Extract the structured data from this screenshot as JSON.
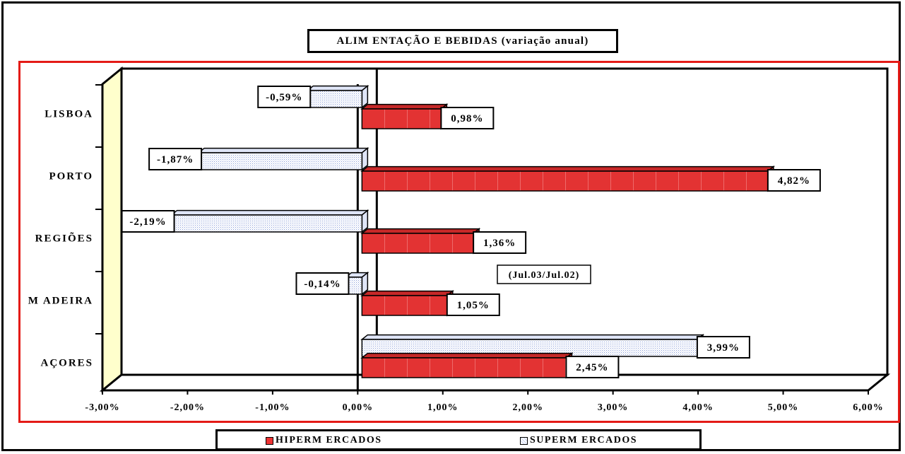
{
  "chart_data": {
    "type": "bar",
    "orientation": "horizontal",
    "title": "ALIM ENTAÇÃO E BEBIDAS (variação anual)",
    "annotation": "(Jul.03/Jul.02)",
    "categories": [
      "LISBOA",
      "PORTO",
      "REGIÕES",
      "M ADEIRA",
      "AÇORES"
    ],
    "series": [
      {
        "name": "HIPERM ERCADOS",
        "color": "#e33333",
        "values": [
          0.98,
          4.82,
          1.36,
          1.05,
          2.45
        ],
        "labels": [
          "0,98%",
          "4,82%",
          "1,36%",
          "1,05%",
          "2,45%"
        ]
      },
      {
        "name": "SUPERM ERCADOS",
        "color": "#c8d4f2",
        "values": [
          -0.59,
          -1.87,
          -2.19,
          -0.14,
          3.99
        ],
        "labels": [
          "-0,59%",
          "-1,87%",
          "-2,19%",
          "-0,14%",
          "3,99%"
        ]
      }
    ],
    "xlim": [
      -3,
      6
    ],
    "x_ticks": [
      -3,
      -2,
      -1,
      0,
      1,
      2,
      3,
      4,
      5,
      6
    ],
    "x_tick_labels": [
      "-3,00%",
      "-2,00%",
      "-1,00%",
      "0,00%",
      "1,00%",
      "2,00%",
      "3,00%",
      "4,00%",
      "5,00%",
      "6,00%"
    ],
    "grid": false,
    "legend_position": "bottom"
  }
}
